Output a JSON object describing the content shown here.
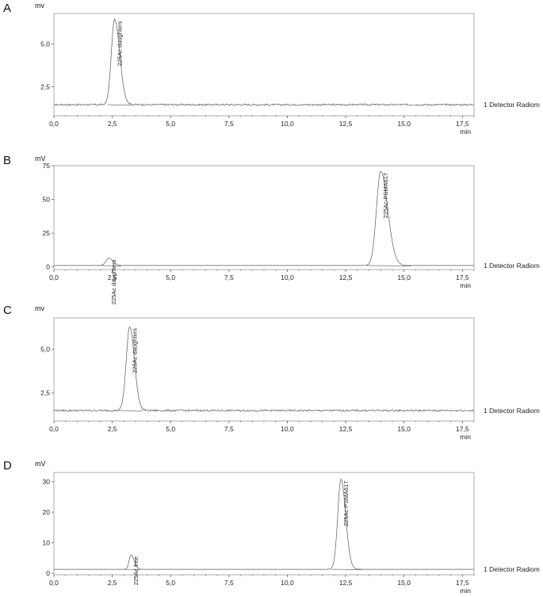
{
  "chart_data": [
    {
      "type": "line",
      "panel_label": "A",
      "y_unit": "mv",
      "x_unit": "min",
      "detector": "1 Detector Radiom",
      "xlim": [
        0,
        18
      ],
      "ylim": [
        0.8,
        6.8
      ],
      "x_ticks": [
        "0,0",
        "2,5",
        "5,0",
        "7,5",
        "10,0",
        "12,5",
        "15,0",
        "17,5"
      ],
      "y_ticks": [
        {
          "v": 2.5,
          "label": "2,5"
        },
        {
          "v": 5.0,
          "label": "5,0"
        }
      ],
      "baseline": 1.45,
      "noise": 0.05,
      "peaks": [
        {
          "label": "225Ac daughters",
          "x": 2.6,
          "height": 5.0,
          "start": 2.3,
          "end": 3.3,
          "sigma_left": 0.14,
          "sigma_right": 0.22
        }
      ]
    },
    {
      "type": "line",
      "panel_label": "B",
      "y_unit": "mV",
      "x_unit": "min",
      "detector": "1 Detector Radiom",
      "xlim": [
        0,
        18
      ],
      "ylim": [
        -2,
        75
      ],
      "x_ticks": [
        "0,0",
        "2,5",
        "5,0",
        "7,5",
        "10,0",
        "12,5",
        "15,0",
        "17,5"
      ],
      "y_ticks": [
        {
          "v": 0,
          "label": "0"
        },
        {
          "v": 25,
          "label": "25"
        },
        {
          "v": 50,
          "label": "50"
        },
        {
          "v": 75,
          "label": "75"
        }
      ],
      "baseline": 1.0,
      "noise": 0.0,
      "peaks": [
        {
          "label": "225Ac daughters",
          "x": 2.35,
          "height": 5.5,
          "start": 1.9,
          "end": 2.9,
          "sigma_left": 0.12,
          "sigma_right": 0.18
        },
        {
          "label": "225Ac-PSMA617",
          "x": 14.0,
          "height": 70.0,
          "start": 13.4,
          "end": 15.3,
          "sigma_left": 0.18,
          "sigma_right": 0.3
        }
      ]
    },
    {
      "type": "line",
      "panel_label": "C",
      "y_unit": "mv",
      "x_unit": "min",
      "detector": "1 Detector Radiom",
      "xlim": [
        0,
        18
      ],
      "ylim": [
        0.9,
        6.8
      ],
      "x_ticks": [
        "0,0",
        "2,5",
        "5,0",
        "7,5",
        "10,0",
        "12,5",
        "15,0",
        "17,5"
      ],
      "y_ticks": [
        {
          "v": 2.5,
          "label": "2,5"
        },
        {
          "v": 5.0,
          "label": "5,0"
        }
      ],
      "baseline": 1.5,
      "noise": 0.05,
      "peaks": [
        {
          "label": "225Ac daughters",
          "x": 3.25,
          "height": 4.8,
          "start": 2.8,
          "end": 3.8,
          "sigma_left": 0.15,
          "sigma_right": 0.2
        }
      ]
    },
    {
      "type": "line",
      "panel_label": "D",
      "y_unit": "mV",
      "x_unit": "min",
      "detector": "1 Detector Radiom",
      "xlim": [
        0,
        18
      ],
      "ylim": [
        -0.5,
        33
      ],
      "x_ticks": [
        "0,0",
        "2,5",
        "5,0",
        "7,5",
        "10,0",
        "12,5",
        "15,0",
        "17,5"
      ],
      "y_ticks": [
        {
          "v": 0,
          "label": "0"
        },
        {
          "v": 10,
          "label": "10"
        },
        {
          "v": 20,
          "label": "20"
        },
        {
          "v": 30,
          "label": "30"
        }
      ],
      "baseline": 1.3,
      "noise": 0.0,
      "peaks": [
        {
          "label": "225Ac free",
          "x": 3.3,
          "height": 4.7,
          "start": 3.0,
          "end": 3.7,
          "sigma_left": 0.08,
          "sigma_right": 0.14
        },
        {
          "label": "225Ac-PSMA617",
          "x": 12.3,
          "height": 29.5,
          "start": 11.9,
          "end": 13.2,
          "sigma_left": 0.14,
          "sigma_right": 0.2
        }
      ]
    }
  ]
}
